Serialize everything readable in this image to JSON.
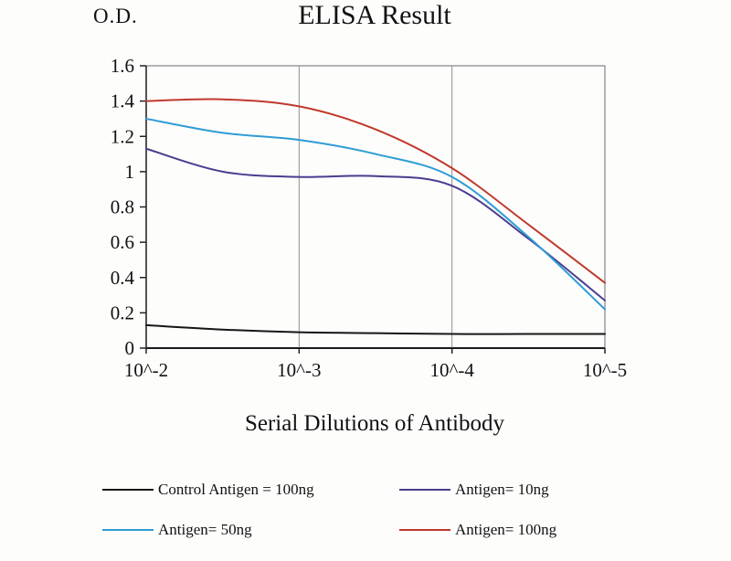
{
  "chart": {
    "title": "ELISA Result",
    "od_label": "O.D.",
    "xlabel": "Serial Dilutions of Antibody"
  },
  "chart_data": {
    "type": "line",
    "title": "ELISA Result",
    "ylabel": "O.D.",
    "xlabel": "Serial Dilutions of Antibody",
    "x_ticks": [
      "10^-2",
      "10^-3",
      "10^-4",
      "10^-5"
    ],
    "y_ticks": [
      "0",
      "0.2",
      "0.4",
      "0.6",
      "0.8",
      "1",
      "1.2",
      "1.4",
      "1.6"
    ],
    "ylim": [
      0,
      1.6
    ],
    "grid": "vertical-only",
    "legend_position": "bottom",
    "x": [
      0,
      0.5,
      1,
      1.5,
      2,
      2.5,
      3
    ],
    "series": [
      {
        "name": "Control Antigen = 100ng",
        "color": "#161616",
        "values": [
          0.13,
          0.105,
          0.09,
          0.085,
          0.08,
          0.08,
          0.08
        ]
      },
      {
        "name": "Antigen= 10ng",
        "color": "#4b3c8f",
        "values": [
          1.13,
          1.0,
          0.97,
          0.975,
          0.92,
          0.62,
          0.27
        ]
      },
      {
        "name": "Antigen= 50ng",
        "color": "#2f9cd4",
        "values": [
          1.3,
          1.22,
          1.18,
          1.1,
          0.97,
          0.63,
          0.22
        ]
      },
      {
        "name": "Antigen= 100ng",
        "color": "#c0392b",
        "values": [
          1.4,
          1.41,
          1.37,
          1.24,
          1.02,
          0.7,
          0.37
        ]
      }
    ]
  }
}
